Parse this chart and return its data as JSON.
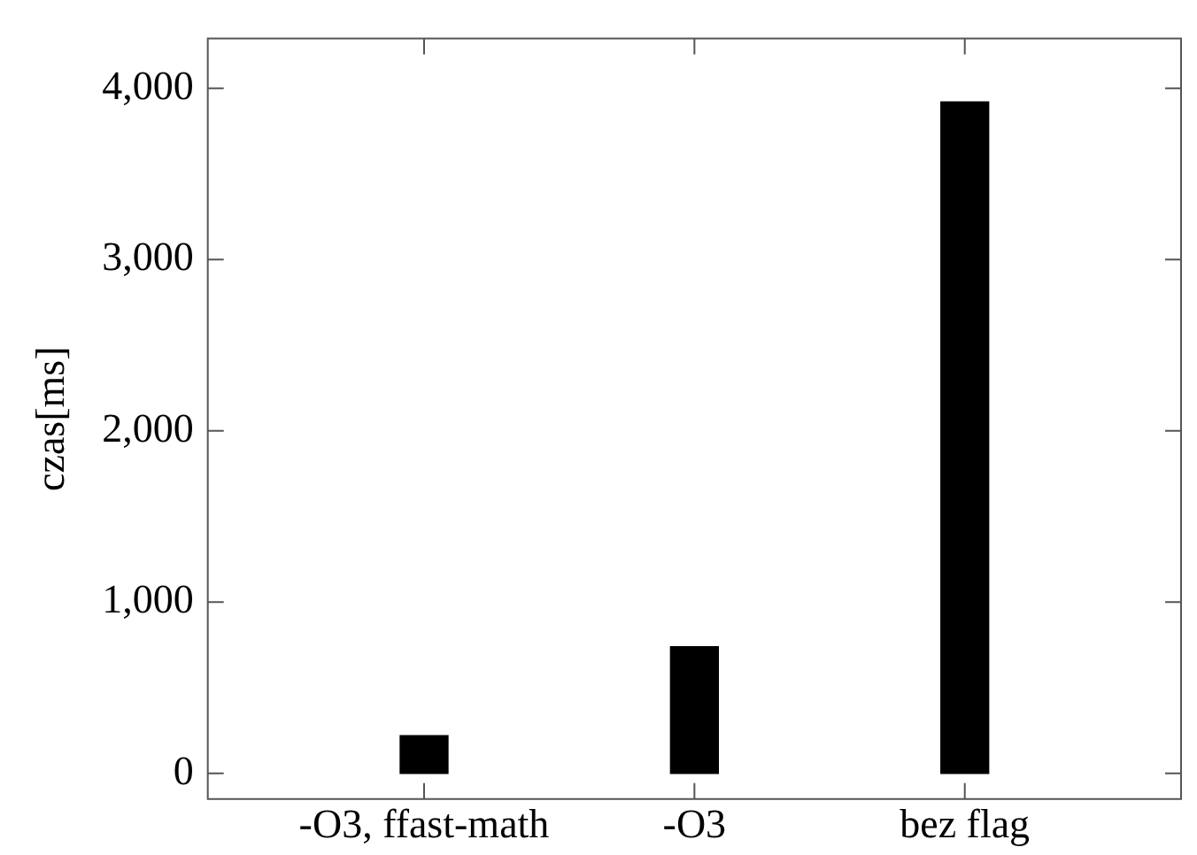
{
  "chart_data": {
    "type": "bar",
    "ylabel": "czas[ms]",
    "categories": [
      "-O3, ffast-math",
      "-O3",
      "bez flag"
    ],
    "values": [
      220,
      740,
      3920
    ],
    "color": "#000000",
    "ylim": [
      -150,
      4290
    ],
    "yticks": [
      0,
      {
        "value": 1000,
        "label": "1,000"
      },
      {
        "value": 2000,
        "label": "2,000"
      },
      {
        "value": 3000,
        "label": "3,000"
      },
      {
        "value": 4000,
        "label": "4,000"
      }
    ],
    "grid": false,
    "legend": false
  }
}
